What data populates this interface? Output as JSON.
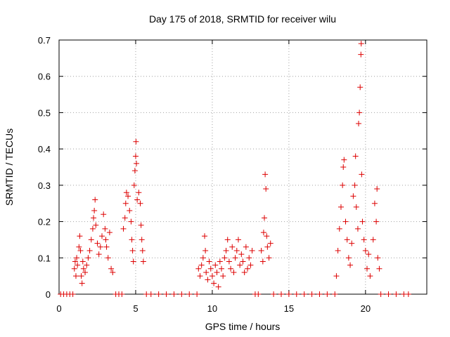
{
  "chart_data": {
    "type": "scatter",
    "title": "Day 175 of 2018, SRMTID for receiver wilu",
    "xlabel": "GPS time / hours",
    "ylabel": "SRMTID / TECUs",
    "xlim": [
      0,
      24
    ],
    "ylim": [
      0,
      0.7
    ],
    "x_ticks": [
      0,
      5,
      10,
      15,
      20
    ],
    "x_tick_labels": [
      "0",
      "5",
      "10",
      "15",
      "20"
    ],
    "y_ticks": [
      0,
      0.1,
      0.2,
      0.3,
      0.4,
      0.5,
      0.6,
      0.7
    ],
    "y_tick_labels": [
      "0",
      "0.1",
      "0.2",
      "0.3",
      "0.4",
      "0.5",
      "0.6",
      "0.7"
    ],
    "grid": true,
    "marker": "plus",
    "marker_color": "#dd0000",
    "series": [
      {
        "name": "SRMTID",
        "points": [
          [
            0.1,
            0
          ],
          [
            0.3,
            0
          ],
          [
            0.5,
            0
          ],
          [
            0.7,
            0
          ],
          [
            0.9,
            0
          ],
          [
            1.0,
            0.07
          ],
          [
            1.05,
            0.09
          ],
          [
            1.1,
            0.05
          ],
          [
            1.15,
            0.1
          ],
          [
            1.2,
            0.08
          ],
          [
            1.3,
            0.13
          ],
          [
            1.35,
            0.16
          ],
          [
            1.4,
            0.12
          ],
          [
            1.45,
            0.05
          ],
          [
            1.5,
            0.03
          ],
          [
            1.55,
            0.09
          ],
          [
            1.6,
            0.07
          ],
          [
            1.7,
            0.06
          ],
          [
            1.8,
            0.08
          ],
          [
            1.9,
            0.1
          ],
          [
            2.0,
            0.12
          ],
          [
            2.1,
            0.15
          ],
          [
            2.2,
            0.18
          ],
          [
            2.25,
            0.21
          ],
          [
            2.3,
            0.23
          ],
          [
            2.35,
            0.26
          ],
          [
            2.4,
            0.19
          ],
          [
            2.5,
            0.14
          ],
          [
            2.6,
            0.11
          ],
          [
            2.7,
            0.13
          ],
          [
            2.8,
            0.16
          ],
          [
            2.9,
            0.22
          ],
          [
            3.0,
            0.18
          ],
          [
            3.05,
            0.15
          ],
          [
            3.1,
            0.13
          ],
          [
            3.2,
            0.1
          ],
          [
            3.3,
            0.17
          ],
          [
            3.4,
            0.07
          ],
          [
            3.5,
            0.06
          ],
          [
            3.7,
            0
          ],
          [
            3.9,
            0
          ],
          [
            4.1,
            0
          ],
          [
            4.2,
            0.18
          ],
          [
            4.3,
            0.21
          ],
          [
            4.35,
            0.25
          ],
          [
            4.4,
            0.28
          ],
          [
            4.5,
            0.27
          ],
          [
            4.6,
            0.23
          ],
          [
            4.7,
            0.2
          ],
          [
            4.75,
            0.15
          ],
          [
            4.8,
            0.12
          ],
          [
            4.85,
            0.09
          ],
          [
            4.9,
            0.3
          ],
          [
            4.95,
            0.34
          ],
          [
            5.0,
            0.38
          ],
          [
            5.02,
            0.42
          ],
          [
            5.05,
            0.36
          ],
          [
            5.1,
            0.26
          ],
          [
            5.2,
            0.28
          ],
          [
            5.3,
            0.25
          ],
          [
            5.35,
            0.19
          ],
          [
            5.4,
            0.15
          ],
          [
            5.45,
            0.12
          ],
          [
            5.5,
            0.09
          ],
          [
            5.7,
            0
          ],
          [
            6.0,
            0
          ],
          [
            6.5,
            0
          ],
          [
            7.0,
            0
          ],
          [
            7.5,
            0
          ],
          [
            8.0,
            0
          ],
          [
            8.5,
            0
          ],
          [
            9.0,
            0
          ],
          [
            9.1,
            0.07
          ],
          [
            9.2,
            0.05
          ],
          [
            9.3,
            0.08
          ],
          [
            9.4,
            0.1
          ],
          [
            9.5,
            0.16
          ],
          [
            9.55,
            0.12
          ],
          [
            9.6,
            0.06
          ],
          [
            9.7,
            0.04
          ],
          [
            9.8,
            0.09
          ],
          [
            9.9,
            0.07
          ],
          [
            10.0,
            0.05
          ],
          [
            10.1,
            0.03
          ],
          [
            10.2,
            0.08
          ],
          [
            10.3,
            0.06
          ],
          [
            10.4,
            0.02
          ],
          [
            10.5,
            0.09
          ],
          [
            10.6,
            0.07
          ],
          [
            10.7,
            0.05
          ],
          [
            10.8,
            0.1
          ],
          [
            10.9,
            0.12
          ],
          [
            11.0,
            0.15
          ],
          [
            11.1,
            0.09
          ],
          [
            11.2,
            0.07
          ],
          [
            11.3,
            0.13
          ],
          [
            11.4,
            0.06
          ],
          [
            11.5,
            0.1
          ],
          [
            11.6,
            0.12
          ],
          [
            11.7,
            0.15
          ],
          [
            11.8,
            0.08
          ],
          [
            11.9,
            0.11
          ],
          [
            12.0,
            0.09
          ],
          [
            12.1,
            0.06
          ],
          [
            12.2,
            0.13
          ],
          [
            12.3,
            0.07
          ],
          [
            12.4,
            0.1
          ],
          [
            12.5,
            0.08
          ],
          [
            12.6,
            0.12
          ],
          [
            12.8,
            0
          ],
          [
            13.0,
            0
          ],
          [
            13.2,
            0.12
          ],
          [
            13.3,
            0.09
          ],
          [
            13.35,
            0.17
          ],
          [
            13.4,
            0.21
          ],
          [
            13.45,
            0.33
          ],
          [
            13.5,
            0.29
          ],
          [
            13.55,
            0.16
          ],
          [
            13.6,
            0.13
          ],
          [
            13.7,
            0.1
          ],
          [
            13.8,
            0.14
          ],
          [
            14.0,
            0
          ],
          [
            14.5,
            0
          ],
          [
            15.0,
            0
          ],
          [
            15.5,
            0
          ],
          [
            16.0,
            0
          ],
          [
            16.5,
            0
          ],
          [
            17.0,
            0
          ],
          [
            17.5,
            0
          ],
          [
            18.0,
            0
          ],
          [
            18.1,
            0.05
          ],
          [
            18.2,
            0.12
          ],
          [
            18.3,
            0.18
          ],
          [
            18.4,
            0.24
          ],
          [
            18.5,
            0.3
          ],
          [
            18.55,
            0.35
          ],
          [
            18.6,
            0.37
          ],
          [
            18.7,
            0.2
          ],
          [
            18.8,
            0.15
          ],
          [
            18.9,
            0.1
          ],
          [
            19.0,
            0.08
          ],
          [
            19.1,
            0.14
          ],
          [
            19.2,
            0.27
          ],
          [
            19.3,
            0.3
          ],
          [
            19.35,
            0.38
          ],
          [
            19.4,
            0.24
          ],
          [
            19.5,
            0.18
          ],
          [
            19.55,
            0.47
          ],
          [
            19.6,
            0.5
          ],
          [
            19.65,
            0.57
          ],
          [
            19.7,
            0.66
          ],
          [
            19.72,
            0.69
          ],
          [
            19.75,
            0.33
          ],
          [
            19.8,
            0.2
          ],
          [
            19.9,
            0.15
          ],
          [
            20.0,
            0.12
          ],
          [
            20.1,
            0.07
          ],
          [
            20.2,
            0.11
          ],
          [
            20.3,
            0.05
          ],
          [
            20.5,
            0.15
          ],
          [
            20.6,
            0.25
          ],
          [
            20.7,
            0.2
          ],
          [
            20.75,
            0.29
          ],
          [
            20.8,
            0.1
          ],
          [
            20.9,
            0.07
          ],
          [
            21.0,
            0
          ],
          [
            21.5,
            0
          ],
          [
            22.0,
            0
          ],
          [
            22.5,
            0
          ],
          [
            22.8,
            0
          ]
        ]
      }
    ]
  }
}
